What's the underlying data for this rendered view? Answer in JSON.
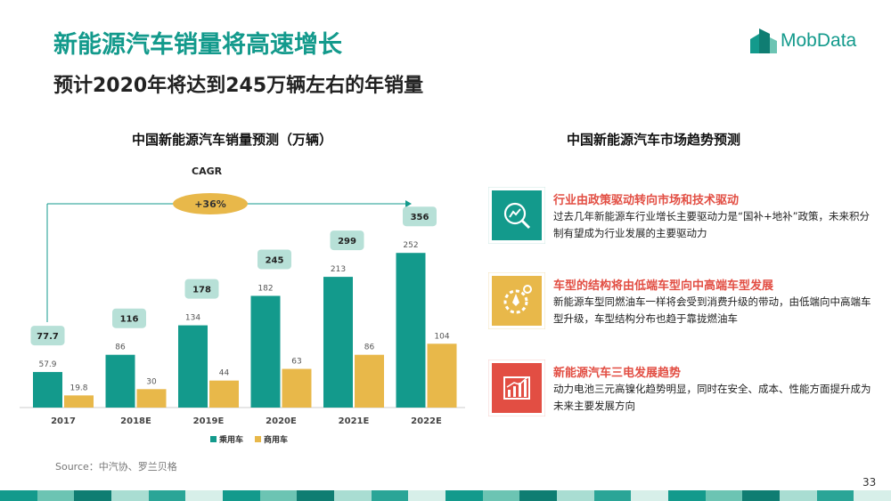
{
  "header": {
    "title": "新能源汽车销量将高速增长",
    "subtitle": "预计2020年将达到245万辆左右的年销量",
    "logo_text": "MobData"
  },
  "left_section": {
    "title": "中国新能源汽车销量预测（万辆）",
    "cagr_label": "CAGR",
    "cagr_value": "+36%"
  },
  "chart_data": {
    "type": "bar",
    "title": "中国新能源汽车销量预测（万辆）",
    "categories": [
      "2017",
      "2018E",
      "2019E",
      "2020E",
      "2021E",
      "2022E"
    ],
    "series": [
      {
        "name": "乘用车",
        "values": [
          57.9,
          86,
          134,
          182,
          213,
          252
        ],
        "labels": [
          "57.9",
          "86",
          "134",
          "182",
          "213",
          "252"
        ],
        "color": "#139a8c"
      },
      {
        "name": "商用车",
        "values": [
          19.8,
          30,
          44,
          63,
          86,
          104
        ],
        "labels": [
          "19.8",
          "30",
          "44",
          "63",
          "86",
          "104"
        ],
        "color": "#e8b84a"
      }
    ],
    "totals": [
      "77.7",
      "116",
      "178",
      "245",
      "299",
      "356"
    ],
    "ylim": [
      0,
      290
    ],
    "legend_position": "bottom"
  },
  "right_section": {
    "title": "中国新能源汽车市场趋势预测",
    "items": [
      {
        "title": "行业由政策驱动转向市场和技术驱动",
        "desc": "过去几年新能源车行业增长主要驱动力是“国补+地补”政策，未来积分制有望成为行业发展的主要驱动力",
        "icon": "growth-chart-icon",
        "color": "#139a8c"
      },
      {
        "title": "车型的结构将由低端车型向中高端车型发展",
        "desc": "新能源车型同燃油车一样将会受到消费升级的带动，由低端向中高端车型升级，车型结构分布也趋于靠拢燃油车",
        "icon": "gear-rocket-icon",
        "color": "#e8b84a"
      },
      {
        "title": "新能源汽车三电发展趋势",
        "desc": "动力电池三元高镍化趋势明显，同时在安全、成本、性能方面提升成为未来主要发展方向",
        "icon": "bar-growth-icon",
        "color": "#e24e43"
      }
    ]
  },
  "footer": {
    "source": "Source：中汽协、罗兰贝格",
    "page_number": "33",
    "stripe_colors": [
      "#139a8c",
      "#6cc4b3",
      "#0f7d72",
      "#a9ddd2",
      "#2aa597",
      "#d7efe9"
    ]
  }
}
